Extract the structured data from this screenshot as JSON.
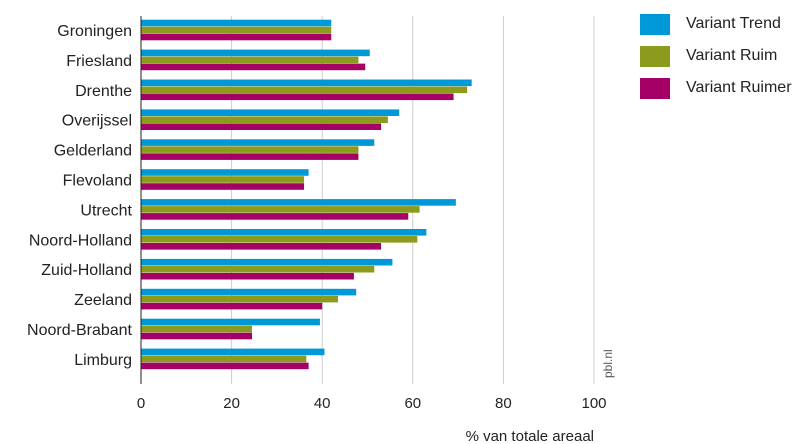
{
  "chart_data": {
    "type": "bar",
    "orientation": "horizontal",
    "categories": [
      "Groningen",
      "Friesland",
      "Drenthe",
      "Overijssel",
      "Gelderland",
      "Flevoland",
      "Utrecht",
      "Noord-Holland",
      "Zuid-Holland",
      "Zeeland",
      "Noord-Brabant",
      "Limburg"
    ],
    "series": [
      {
        "name": "Variant Trend",
        "color": "#0099d8",
        "values": [
          42,
          50.5,
          73,
          57,
          51.5,
          37,
          69.5,
          63,
          55.5,
          47.5,
          39.5,
          40.5
        ]
      },
      {
        "name": "Variant Ruim",
        "color": "#8c9a1e",
        "values": [
          42,
          48,
          72,
          54.5,
          48,
          36,
          61.5,
          61,
          51.5,
          43.5,
          24.5,
          36.5
        ]
      },
      {
        "name": "Variant Ruimer",
        "color": "#a50066",
        "values": [
          42,
          49.5,
          69,
          53,
          48,
          36,
          59,
          53,
          47,
          40,
          24.5,
          37
        ]
      }
    ],
    "xlabel": "% van totale areaal",
    "ylabel": "",
    "xlim": [
      0,
      100
    ],
    "xticks": [
      "0",
      "20",
      "40",
      "60",
      "80",
      "100"
    ],
    "grid": true,
    "legend_position": "top-right",
    "watermark": "pbl.nl"
  }
}
